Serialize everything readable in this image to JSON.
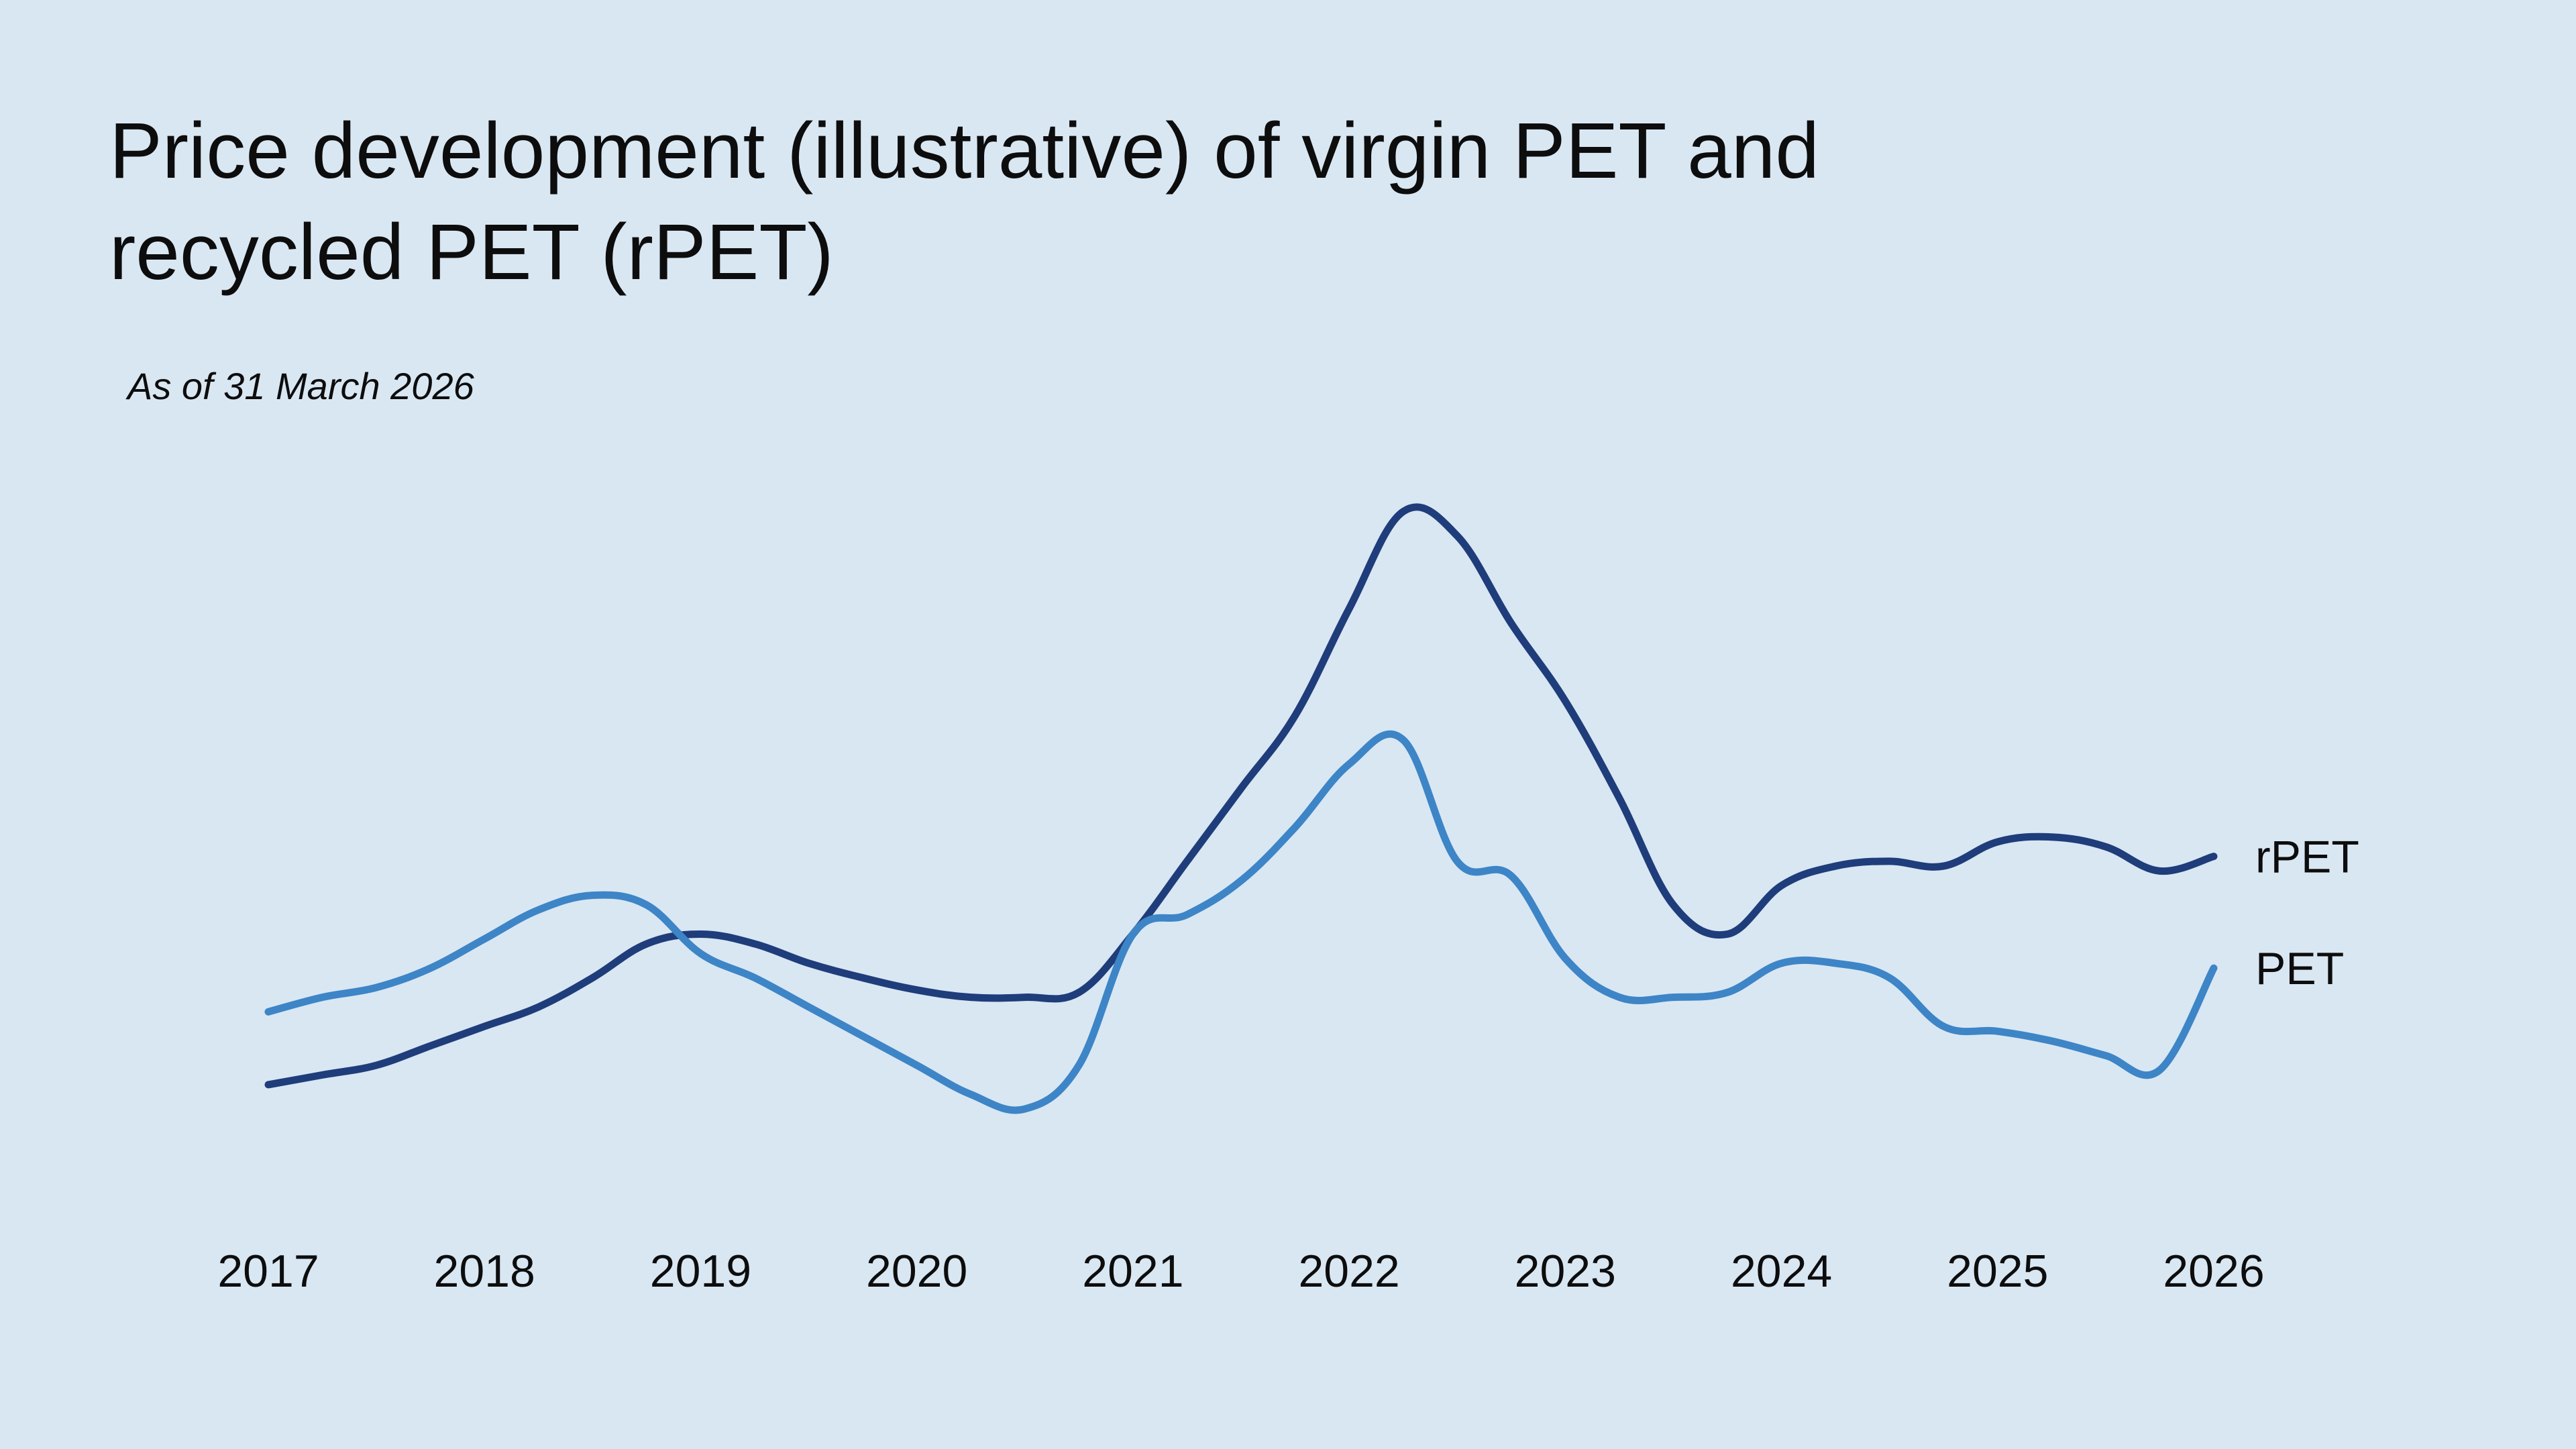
{
  "title": "Price development (illustrative) of virgin PET and recycled PET (rPET)",
  "subtitle": "As of 31 March 2026",
  "colors": {
    "background": "#d9e7f3",
    "rPET": "#1f3d7a",
    "PET": "#3d85c6"
  },
  "chart_data": {
    "type": "line",
    "title": "Price development (illustrative) of virgin PET and recycled PET (rPET)",
    "subtitle": "As of 31 March 2026",
    "xlabel": "",
    "ylabel": "",
    "x_ticks": [
      "2017",
      "2018",
      "2019",
      "2020",
      "2021",
      "2022",
      "2023",
      "2024",
      "2025",
      "2026"
    ],
    "xlim": [
      2017,
      2026
    ],
    "y_axis_visible": false,
    "grid": false,
    "legend": "inline labels at line ends (right)",
    "series": [
      {
        "name": "rPET",
        "color": "#1f3d7a",
        "points": [
          [
            2017.0,
            17
          ],
          [
            2017.25,
            19
          ],
          [
            2017.5,
            21
          ],
          [
            2017.75,
            25
          ],
          [
            2018.0,
            29
          ],
          [
            2018.25,
            33
          ],
          [
            2018.5,
            39
          ],
          [
            2018.75,
            46
          ],
          [
            2019.0,
            48
          ],
          [
            2019.25,
            46
          ],
          [
            2019.5,
            42
          ],
          [
            2019.75,
            39
          ],
          [
            2020.0,
            36.5
          ],
          [
            2020.25,
            35
          ],
          [
            2020.5,
            35
          ],
          [
            2020.75,
            36
          ],
          [
            2021.0,
            48
          ],
          [
            2021.25,
            63
          ],
          [
            2021.5,
            78
          ],
          [
            2021.75,
            93
          ],
          [
            2022.0,
            115
          ],
          [
            2022.25,
            135
          ],
          [
            2022.5,
            130
          ],
          [
            2022.75,
            112
          ],
          [
            2023.0,
            96
          ],
          [
            2023.25,
            76
          ],
          [
            2023.5,
            54
          ],
          [
            2023.75,
            48
          ],
          [
            2024.0,
            58
          ],
          [
            2024.25,
            62
          ],
          [
            2024.5,
            63
          ],
          [
            2024.75,
            62
          ],
          [
            2025.0,
            67
          ],
          [
            2025.25,
            68
          ],
          [
            2025.5,
            66
          ],
          [
            2025.75,
            61
          ],
          [
            2026.0,
            64
          ]
        ]
      },
      {
        "name": "PET",
        "color": "#3d85c6",
        "points": [
          [
            2017.0,
            32
          ],
          [
            2017.25,
            35
          ],
          [
            2017.5,
            37
          ],
          [
            2017.75,
            41
          ],
          [
            2018.0,
            47
          ],
          [
            2018.25,
            53
          ],
          [
            2018.5,
            56
          ],
          [
            2018.75,
            54
          ],
          [
            2019.0,
            44
          ],
          [
            2019.25,
            39
          ],
          [
            2019.5,
            33
          ],
          [
            2019.75,
            27
          ],
          [
            2020.0,
            21
          ],
          [
            2020.25,
            15
          ],
          [
            2020.5,
            12
          ],
          [
            2020.75,
            21
          ],
          [
            2021.0,
            48
          ],
          [
            2021.25,
            52
          ],
          [
            2021.5,
            59
          ],
          [
            2021.75,
            70
          ],
          [
            2022.0,
            83
          ],
          [
            2022.25,
            88
          ],
          [
            2022.5,
            63
          ],
          [
            2022.75,
            60
          ],
          [
            2023.0,
            43
          ],
          [
            2023.25,
            35
          ],
          [
            2023.5,
            35
          ],
          [
            2023.75,
            36
          ],
          [
            2024.0,
            42
          ],
          [
            2024.25,
            42
          ],
          [
            2024.5,
            39
          ],
          [
            2024.75,
            29
          ],
          [
            2025.0,
            28
          ],
          [
            2025.25,
            26
          ],
          [
            2025.5,
            23
          ],
          [
            2025.75,
            20
          ],
          [
            2026.0,
            41
          ]
        ]
      }
    ]
  }
}
